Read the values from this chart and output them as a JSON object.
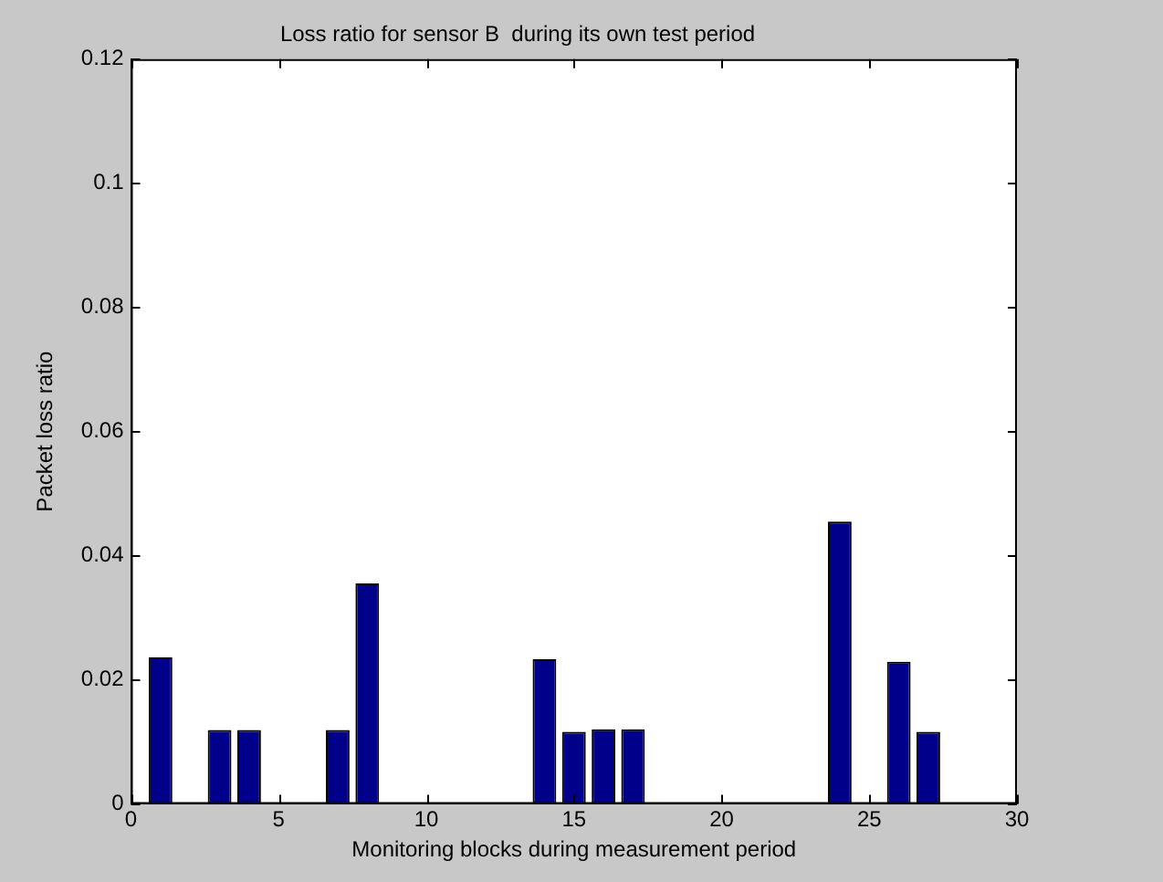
{
  "chart_data": {
    "type": "bar",
    "title": "Loss ratio for sensor B  during its own test period",
    "xlabel": "Monitoring blocks during measurement period",
    "ylabel": "Packet loss ratio",
    "x": [
      1,
      2,
      3,
      4,
      5,
      6,
      7,
      8,
      9,
      10,
      11,
      12,
      13,
      14,
      15,
      16,
      17,
      18,
      19,
      20,
      21,
      22,
      23,
      24,
      25,
      26,
      27,
      28,
      29
    ],
    "values": [
      0.0236,
      0,
      0.0119,
      0.0119,
      0,
      0,
      0.0119,
      0.0355,
      0,
      0,
      0,
      0,
      0,
      0.0233,
      0.0116,
      0.012,
      0.012,
      0,
      0,
      0,
      0,
      0,
      0,
      0.0455,
      0,
      0.0229,
      0.0116,
      0,
      0
    ],
    "color": "#00008b",
    "xlim": [
      0,
      30
    ],
    "xticks": [
      0,
      5,
      10,
      15,
      20,
      25,
      30
    ],
    "ylim": [
      0,
      0.12
    ],
    "yticks": [
      0,
      0.02,
      0.04,
      0.06,
      0.08,
      0.1,
      0.12
    ],
    "grid": false,
    "legend": false
  }
}
